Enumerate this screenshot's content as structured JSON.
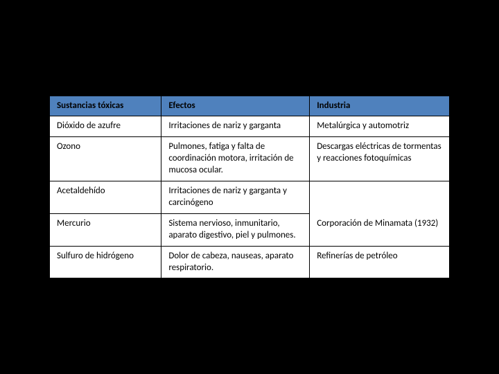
{
  "table": {
    "columns": [
      {
        "label": "Sustancias tóxicas",
        "width": "28%"
      },
      {
        "label": "Efectos",
        "width": "37%"
      },
      {
        "label": "Industria",
        "width": "35%"
      }
    ],
    "rows": [
      {
        "substance": "Dióxido de azufre",
        "effects": "Irritaciones de nariz y garganta",
        "industry": "Metalúrgica  y automotriz"
      },
      {
        "substance": "Ozono",
        "effects": "Pulmones, fatiga y falta de coordinación motora, irritación de mucosa ocular.",
        "industry": "Descargas eléctricas de tormentas  y reacciones fotoquímicas"
      },
      {
        "substance": "Acetaldehído",
        "effects": "Irritaciones de nariz y garganta y carcinógeno",
        "industry": ""
      },
      {
        "substance": "Mercurio",
        "effects": "Sistema nervioso, inmunitario, aparato digestivo, piel y pulmones.",
        "industry": "Corporación de Minamata (1932)"
      },
      {
        "substance": "Sulfuro de hidrógeno",
        "effects": "Dolor de cabeza, nauseas, aparato respiratorio.",
        "industry": "Refinerías de petróleo"
      }
    ],
    "colors": {
      "header_bg": "#4f81bd",
      "body_bg": "#ffffff",
      "page_bg": "#000000",
      "border": "#000000",
      "text": "#000000"
    },
    "fontsize": 13
  }
}
